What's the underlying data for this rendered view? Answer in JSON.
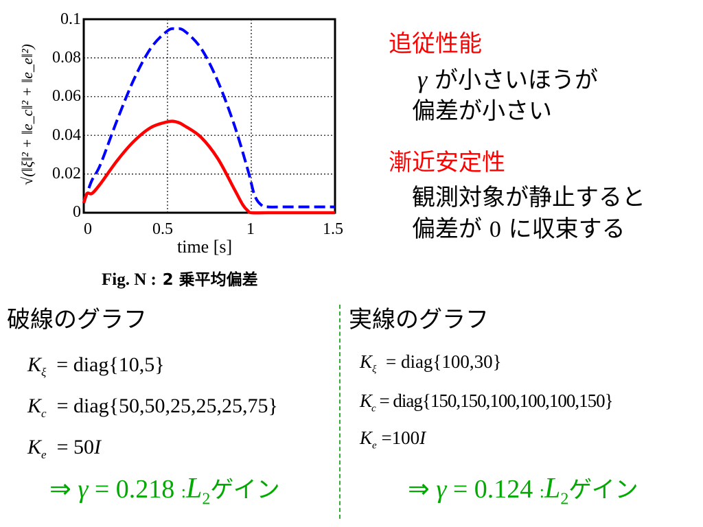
{
  "chart_data": {
    "type": "line",
    "xlabel": "time [s]",
    "ylabel": "√(‖ξ‖² + ‖e_c‖² + ‖e_e‖²)",
    "xlim": [
      0,
      1.5
    ],
    "ylim": [
      0,
      0.1
    ],
    "x_ticks": [
      "0",
      "0.5",
      "1",
      "1.5"
    ],
    "y_ticks": [
      "0",
      "0.02",
      "0.04",
      "0.06",
      "0.08",
      "0.1"
    ],
    "grid": "dotted",
    "series": [
      {
        "style": "dashed",
        "color": "#0000ff",
        "x": [
          0,
          0.02,
          0.05,
          0.1,
          0.2,
          0.3,
          0.4,
          0.5,
          0.55,
          0.6,
          0.7,
          0.8,
          0.9,
          0.98,
          1.02,
          1.06,
          1.1,
          1.2,
          1.3,
          1.4,
          1.5
        ],
        "y": [
          0.005,
          0.01,
          0.017,
          0.025,
          0.048,
          0.069,
          0.085,
          0.094,
          0.095,
          0.094,
          0.085,
          0.068,
          0.045,
          0.022,
          0.009,
          0.004,
          0.003,
          0.003,
          0.003,
          0.003,
          0.003
        ]
      },
      {
        "style": "solid",
        "color": "#ff0000",
        "x": [
          0,
          0.02,
          0.05,
          0.1,
          0.2,
          0.3,
          0.4,
          0.5,
          0.55,
          0.6,
          0.7,
          0.8,
          0.9,
          0.95,
          0.98,
          1.0,
          1.1,
          1.2,
          1.3,
          1.4,
          1.5
        ],
        "y": [
          0.005,
          0.01,
          0.01,
          0.015,
          0.027,
          0.037,
          0.044,
          0.047,
          0.047,
          0.045,
          0.039,
          0.028,
          0.012,
          0.004,
          0.001,
          0.0,
          0.0,
          0.0,
          0.0,
          0.0,
          0.0
        ]
      }
    ]
  },
  "figure": {
    "caption_prefix": "Fig. N :",
    "caption_jp": "2 乗平均偏差"
  },
  "right_panel": {
    "tracking_title": "追従性能",
    "tracking_gamma": "γ",
    "tracking_line1": "が小さいほうが",
    "tracking_line2": "偏差が小さい",
    "stability_title": "漸近安定性",
    "stability_line1": "観測対象が静止すると",
    "stability_line2_a": "偏差が",
    "stability_line2_num": "0",
    "stability_line2_b": "に収束する"
  },
  "left_params": {
    "title": "破線のグラフ",
    "k_xi_value": "diag{10,5}",
    "k_c_value": "diag{50,50,25,25,25,75}",
    "k_e_value": "50",
    "gamma_value": "0.218",
    "gain_label": "ゲイン"
  },
  "right_params": {
    "title": "実線のグラフ",
    "k_xi_value": "diag{100,30}",
    "k_c_value": "diag{150,150,100,100,100,150}",
    "k_e_value": "100",
    "gamma_value": "0.124",
    "gain_label": "ゲイン"
  },
  "colors": {
    "accent_red": "#ff0000",
    "accent_green": "#00aa00",
    "divider": "#33aa33"
  }
}
